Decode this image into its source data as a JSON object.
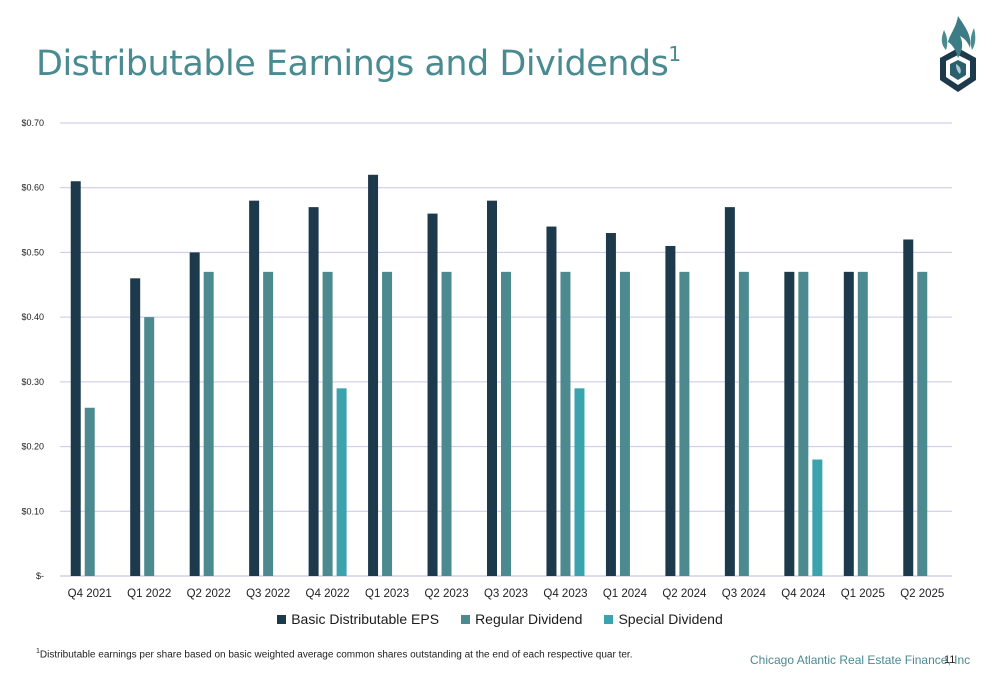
{
  "header": {
    "title": "Distributable Earnings and Dividends",
    "title_superscript": "1"
  },
  "logo": {
    "icon": "flame-logo-icon"
  },
  "chart_data": {
    "type": "bar",
    "categories": [
      "Q4 2021",
      "Q1 2022",
      "Q2 2022",
      "Q3 2022",
      "Q4 2022",
      "Q1 2023",
      "Q2 2023",
      "Q3 2023",
      "Q4 2023",
      "Q1 2024",
      "Q2 2024",
      "Q3 2024",
      "Q4 2024",
      "Q1 2025",
      "Q2 2025"
    ],
    "series": [
      {
        "name": "Basic Distributable EPS",
        "color": "#1d3a4c",
        "values": [
          0.61,
          0.46,
          0.5,
          0.58,
          0.57,
          0.62,
          0.56,
          0.58,
          0.54,
          0.53,
          0.51,
          0.57,
          0.47,
          0.47,
          0.52
        ]
      },
      {
        "name": "Regular Dividend",
        "color": "#4d8a8f",
        "values": [
          0.26,
          0.4,
          0.47,
          0.47,
          0.47,
          0.47,
          0.47,
          0.47,
          0.47,
          0.47,
          0.47,
          0.47,
          0.47,
          0.47,
          0.47
        ]
      },
      {
        "name": "Special Dividend",
        "color": "#3aa3ad",
        "values": [
          null,
          null,
          null,
          null,
          0.29,
          null,
          null,
          null,
          0.29,
          null,
          null,
          null,
          0.18,
          null,
          null
        ]
      }
    ],
    "y_ticks": [
      {
        "value": 0,
        "label": "$-"
      },
      {
        "value": 0.1,
        "label": "$0.10"
      },
      {
        "value": 0.2,
        "label": "$0.20"
      },
      {
        "value": 0.3,
        "label": "$0.30"
      },
      {
        "value": 0.4,
        "label": "$0.40"
      },
      {
        "value": 0.5,
        "label": "$0.50"
      },
      {
        "value": 0.6,
        "label": "$0.60"
      },
      {
        "value": 0.7,
        "label": "$0.70"
      }
    ],
    "ylim": [
      0,
      0.7
    ],
    "grid": true,
    "gridline_color": "#c9c6e6",
    "legend_position": "bottom"
  },
  "footer": {
    "footnote_marker": "1",
    "footnote": "Distributable earnings per share based on basic weighted average common shares outstanding at the end of each respective quar ter.",
    "company": "Chicago Atlantic Real Estate Finance, Inc",
    "page_number": "11"
  }
}
